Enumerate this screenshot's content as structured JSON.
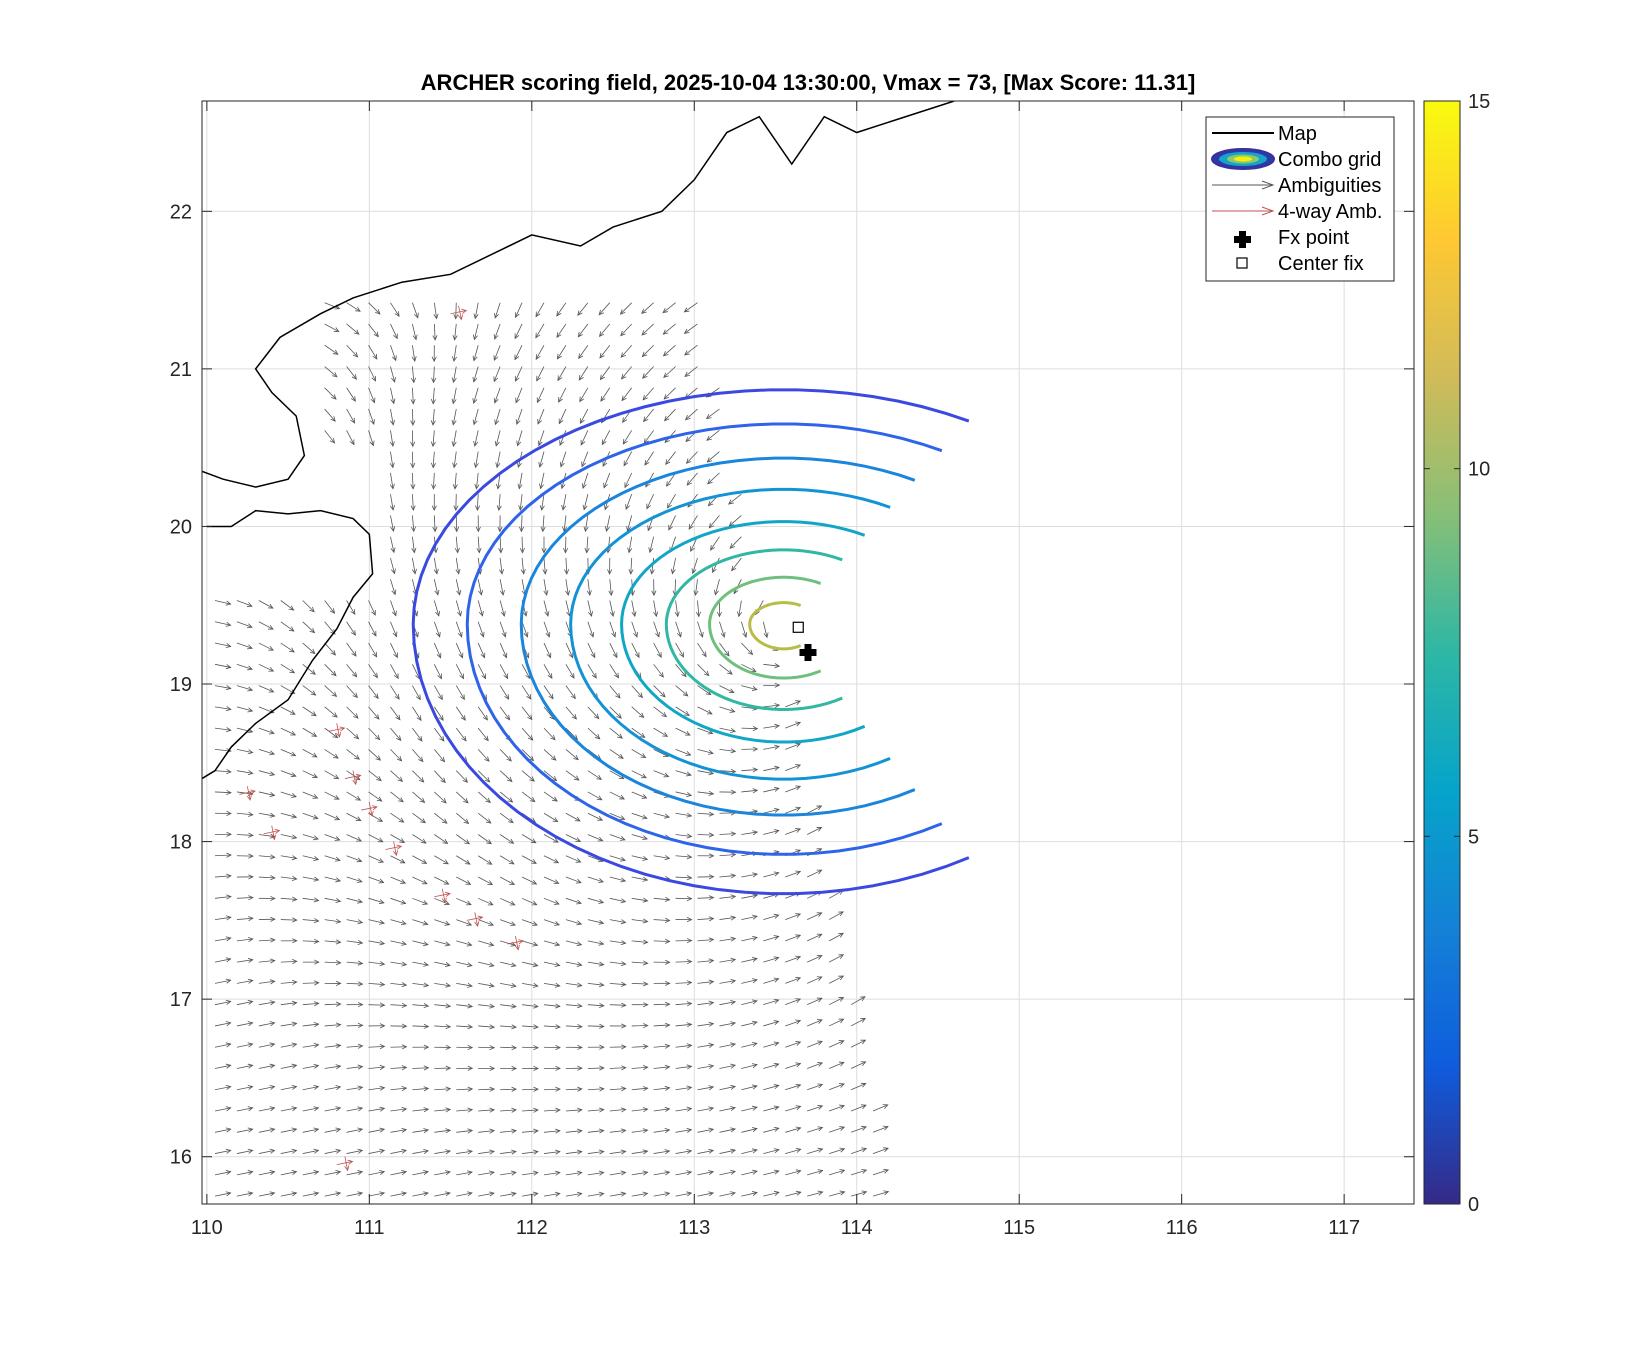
{
  "chart_data": {
    "type": "contour",
    "title": "ARCHER scoring field, 2025-10-04 13:30:00, Vmax = 73, [Max Score: 11.31]",
    "xlabel": "",
    "ylabel": "",
    "xlim": [
      109.97,
      117.43
    ],
    "ylim": [
      15.7,
      22.7
    ],
    "x_ticks": [
      110,
      111,
      112,
      113,
      114,
      115,
      116,
      117
    ],
    "y_ticks": [
      16,
      17,
      18,
      19,
      20,
      21,
      22
    ],
    "grid": true,
    "colorbar": {
      "colormap": "parula",
      "range": [
        0,
        15
      ],
      "ticks": [
        0,
        5,
        10,
        15
      ],
      "stops": [
        "#352a87",
        "#0f5cdd",
        "#1481d6",
        "#06a4ca",
        "#2eb7a4",
        "#87bf77",
        "#d1bb59",
        "#fec832",
        "#f9fb0e"
      ]
    },
    "fx_point": {
      "lon": 113.7,
      "lat": 19.2
    },
    "center_fix": {
      "lon": 113.64,
      "lat": 19.36
    },
    "storm_center": {
      "lon": 113.55,
      "lat": 19.38
    },
    "contours": [
      {
        "level": 10.0,
        "color": "#b7bd46",
        "r": 0.22
      },
      {
        "level": 8.7,
        "color": "#6fc07c",
        "r": 0.48
      },
      {
        "level": 7.4,
        "color": "#31b8a2",
        "r": 0.76
      },
      {
        "level": 6.6,
        "color": "#12a6c6",
        "r": 1.05
      },
      {
        "level": 5.8,
        "color": "#1393d4",
        "r": 1.38
      },
      {
        "level": 5.0,
        "color": "#1a85dc",
        "r": 1.7
      },
      {
        "level": 3.8,
        "color": "#2d64ea",
        "r": 2.05
      },
      {
        "level": 2.7,
        "color": "#3a49e0",
        "r": 2.4
      }
    ],
    "legend": {
      "position": "top-right",
      "entries": [
        "Map",
        "Combo grid",
        "Ambiguities",
        "4-way Amb.",
        "Fx point",
        "Center fix"
      ]
    },
    "colors": {
      "ambiguity_arrows": "#555555",
      "four_way_arrows": "#c0504d",
      "coastline": "#000000",
      "grid": "#dddddd"
    }
  }
}
